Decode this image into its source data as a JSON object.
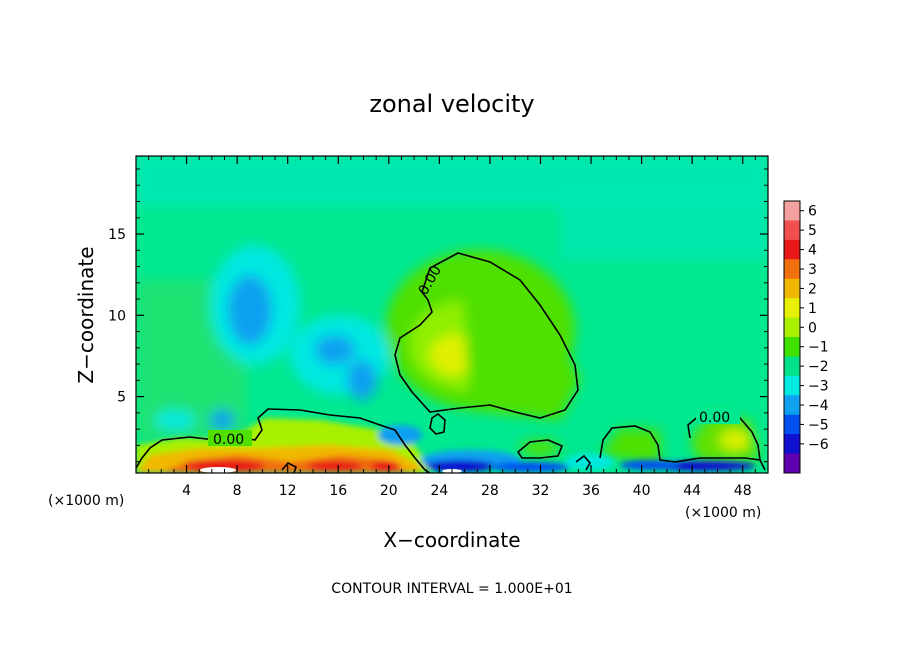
{
  "chart_data": {
    "type": "heatmap",
    "title": "zonal velocity",
    "xlabel": "X−coordinate",
    "ylabel": "Z−coordinate",
    "x_unit_left": "(×1000 m)",
    "x_unit_right": "(×1000 m)",
    "xlim": [
      0,
      50
    ],
    "ylim": [
      0.3,
      19.8
    ],
    "x_ticks": [
      4,
      8,
      12,
      16,
      20,
      24,
      28,
      32,
      36,
      40,
      44,
      48
    ],
    "x_tick_labels": [
      "4",
      "8",
      "12",
      "16",
      "20",
      "24",
      "28",
      "32",
      "36",
      "40",
      "44",
      "48"
    ],
    "y_ticks": [
      5,
      10,
      15
    ],
    "y_tick_labels": [
      "5",
      "10",
      "15"
    ],
    "colorbar": {
      "levels": [
        6,
        5,
        4,
        3,
        2,
        1,
        0,
        -1,
        -2,
        -3,
        -4,
        -5,
        -6
      ],
      "labels": [
        "6",
        "5",
        "4",
        "3",
        "2",
        "1",
        "0",
        "−1",
        "−2",
        "−3",
        "−4",
        "−5",
        "−6"
      ],
      "colors": [
        "#f5a0a0",
        "#f05050",
        "#e81818",
        "#f07010",
        "#f0b800",
        "#e8f000",
        "#a8f000",
        "#40e000",
        "#00e088",
        "#00e8e0",
        "#10a0f0",
        "#0050f0",
        "#1010d0",
        "#6000b0"
      ]
    },
    "contour_labels": [
      "0.00",
      "0.00",
      "0.00"
    ],
    "background_color": "#00e890",
    "contour_interval_label": "CONTOUR INTERVAL = 1.000E+01"
  }
}
